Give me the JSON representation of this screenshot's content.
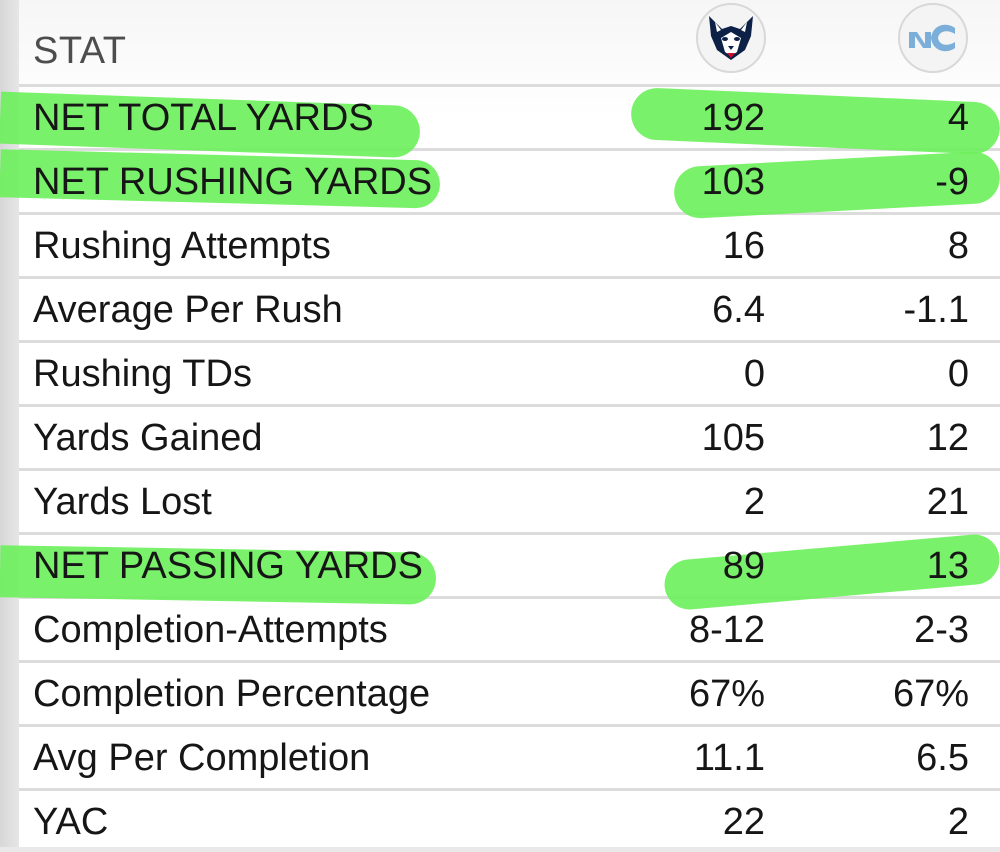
{
  "header": {
    "stat_label": "STAT",
    "team1_logo": "uconn-husky-icon",
    "team2_logo": "unc-tar-heels-icon"
  },
  "colors": {
    "highlight": "#6cf05a",
    "text": "#161616",
    "divider": "#dcdcdc",
    "uconn_navy": "#0d2146",
    "unc_blue": "#7baed9"
  },
  "rows": [
    {
      "label": "NET TOTAL YARDS",
      "v1": "192",
      "v2": "4",
      "highlighted": true
    },
    {
      "label": "NET RUSHING YARDS",
      "v1": "103",
      "v2": "-9",
      "highlighted": true
    },
    {
      "label": "Rushing Attempts",
      "v1": "16",
      "v2": "8"
    },
    {
      "label": "Average Per Rush",
      "v1": "6.4",
      "v2": "-1.1"
    },
    {
      "label": "Rushing TDs",
      "v1": "0",
      "v2": "0"
    },
    {
      "label": "Yards Gained",
      "v1": "105",
      "v2": "12"
    },
    {
      "label": "Yards Lost",
      "v1": "2",
      "v2": "21"
    },
    {
      "label": "NET PASSING YARDS",
      "v1": "89",
      "v2": "13",
      "highlighted": true
    },
    {
      "label": "Completion-Attempts",
      "v1": "8-12",
      "v2": "2-3"
    },
    {
      "label": "Completion Percentage",
      "v1": "67%",
      "v2": "67%"
    },
    {
      "label": "Avg Per Completion",
      "v1": "11.1",
      "v2": "6.5"
    },
    {
      "label": "YAC",
      "v1": "22",
      "v2": "2"
    }
  ]
}
